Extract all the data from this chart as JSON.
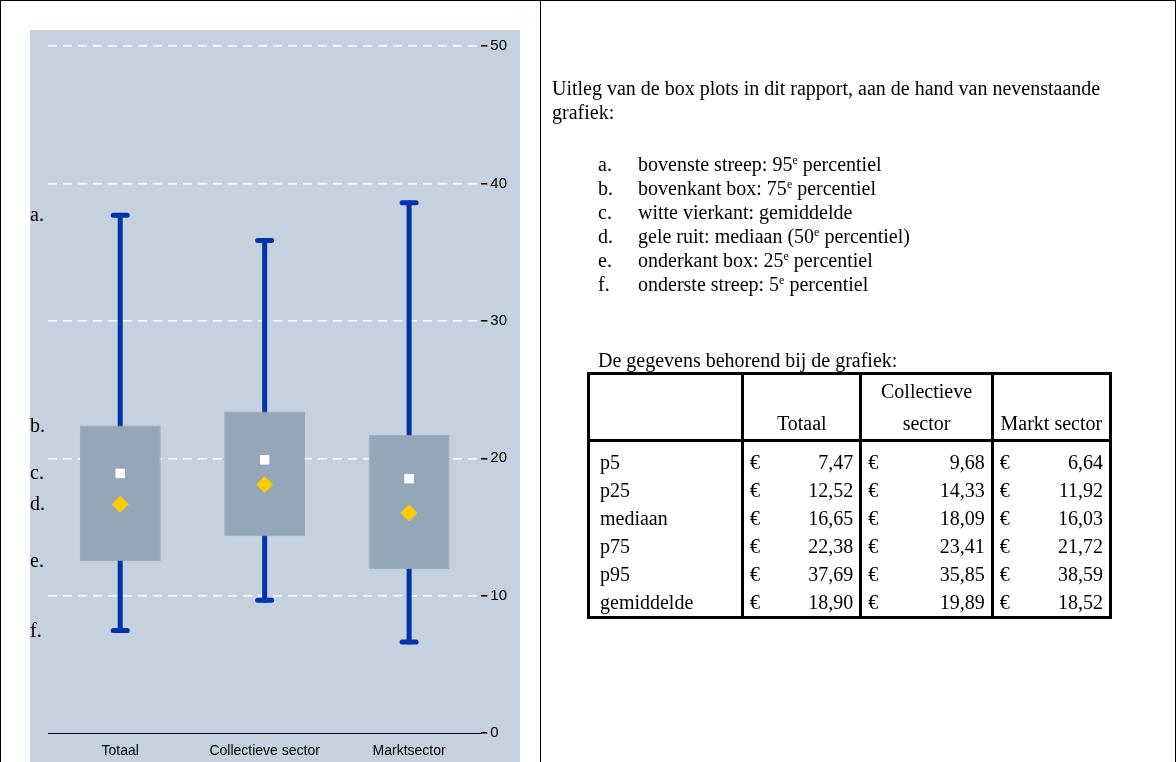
{
  "chart_data": [
    {
      "type": "box",
      "categories": [
        "Totaal",
        "Collectieve sector",
        "Marktsector"
      ],
      "series": [
        {
          "color": "#94a6b8",
          "boxes": [
            {
              "low": 7.47,
              "q1": 12.52,
              "median": 16.65,
              "q3": 22.38,
              "high": 37.69,
              "mean": 18.9
            },
            {
              "low": 9.68,
              "q1": 14.33,
              "median": 18.09,
              "q3": 23.41,
              "high": 35.85,
              "mean": 19.89
            },
            {
              "low": 6.64,
              "q1": 11.92,
              "median": 16.03,
              "q3": 21.72,
              "high": 38.59,
              "mean": 18.52
            }
          ]
        }
      ],
      "ylim": [
        0,
        50
      ],
      "yticks": [
        0,
        10,
        20,
        30,
        40,
        50
      ],
      "grid": "y",
      "annotations": [
        "a.",
        "b.",
        "c.",
        "d.",
        "e.",
        "f."
      ]
    },
    {
      "type": "other",
      "title": "Uitleg van de box plots in dit rapport, aan de hand van nevenstaande grafiek:",
      "annotations": [
        "a. bovenste streep: 95$^{e}$ percentiel",
        "b. bovenkant box: 75$^{e}$ percentiel",
        "c. witte vierkant: gemiddelde",
        "d. gele ruit: mediaan (50$^{e}$ percentiel)",
        "e. onderkant box: 25$^{e}$ percentiel",
        "f. onderste streep: 5$^{e}$ percentiel",
        "De gegevens behorend bij de grafiek:"
      ],
      "categories": [
        "Totaal",
        "Collectieve sector",
        "Markt sector"
      ],
      "y_categories": [
        "p5",
        "p25",
        "mediaan",
        "p75",
        "p95",
        "gemiddelde"
      ],
      "cell_labels": [
        [
          "€ 7,47",
          "€ 9,68",
          "€ 6,64"
        ],
        [
          "€ 12,52",
          "€ 14,33",
          "€ 11,92"
        ],
        [
          "€ 16,65",
          "€ 18,09",
          "€ 16,03"
        ],
        [
          "€ 22,38",
          "€ 23,41",
          "€ 21,72"
        ],
        [
          "€ 37,69",
          "€ 35,85",
          "€ 38,59"
        ],
        [
          "€ 18,90",
          "€ 19,89",
          "€ 18,52"
        ]
      ]
    }
  ]
}
